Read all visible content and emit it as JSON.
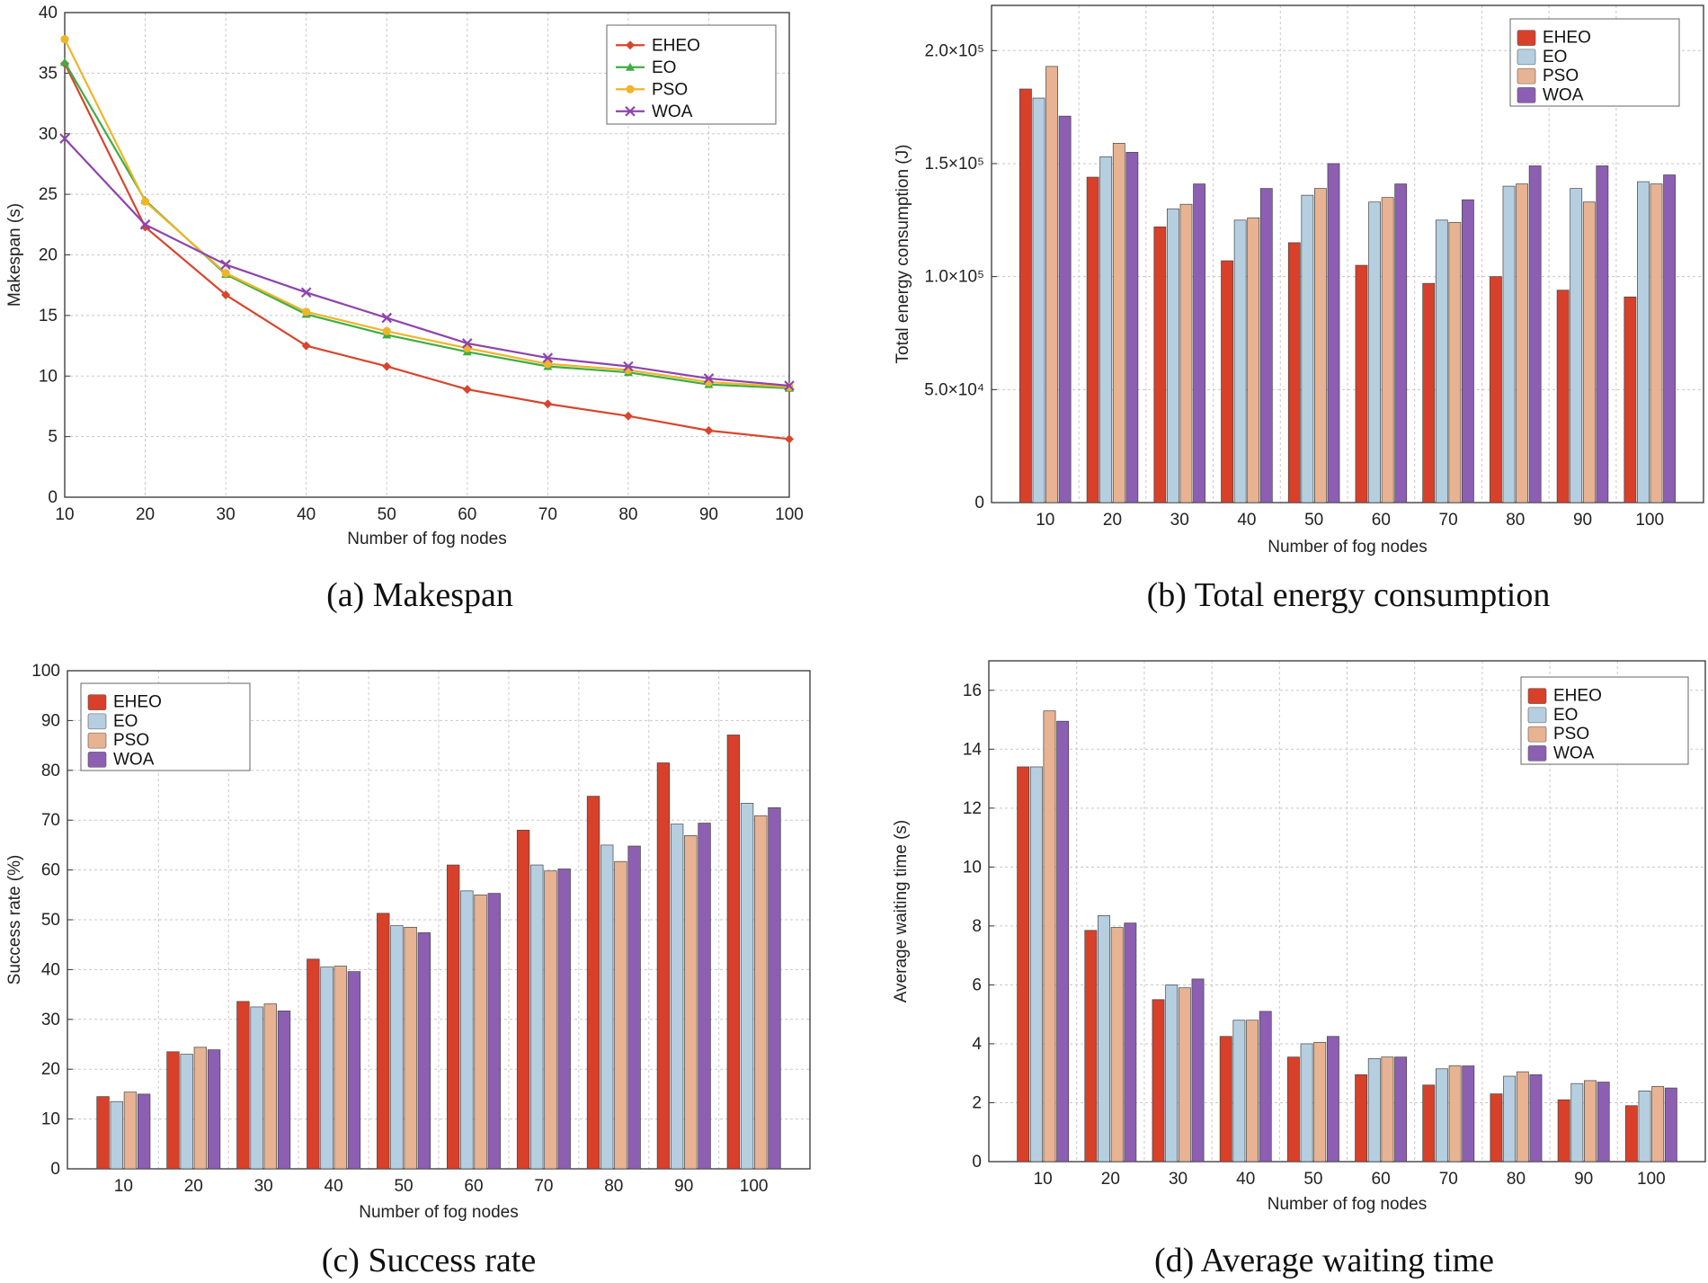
{
  "colors": {
    "EHEO_line": "#d9452c",
    "EO_line": "#3cae44",
    "PSO_line": "#f0b428",
    "WOA_line": "#8e44ad",
    "EHEO_bar": "#d8402a",
    "EO_bar": "#b6cfe0",
    "PSO_bar": "#e7b393",
    "WOA_bar": "#8c5fb2"
  },
  "chart_data": [
    {
      "id": "a",
      "type": "line",
      "caption": "(a) Makespan",
      "xlabel": "Number of fog nodes",
      "ylabel": "Makespan (s)",
      "x": [
        10,
        20,
        30,
        40,
        50,
        60,
        70,
        80,
        90,
        100
      ],
      "xlim": [
        10,
        100
      ],
      "ylim": [
        0,
        40
      ],
      "yticks": [
        0,
        5,
        10,
        15,
        20,
        25,
        30,
        35,
        40
      ],
      "ytick_labels": [
        "0",
        "5",
        "10",
        "15",
        "20",
        "25",
        "30",
        "35",
        "40"
      ],
      "grid": true,
      "legend": "top-right",
      "series": [
        {
          "name": "EHEO",
          "marker": "diamond",
          "values": [
            35.8,
            22.3,
            16.7,
            12.5,
            10.8,
            8.9,
            7.7,
            6.7,
            5.5,
            4.8
          ]
        },
        {
          "name": "EO",
          "marker": "triangle",
          "values": [
            35.9,
            24.5,
            18.4,
            15.1,
            13.4,
            12.0,
            10.8,
            10.3,
            9.3,
            9.0
          ]
        },
        {
          "name": "PSO",
          "marker": "circle",
          "values": [
            37.8,
            24.4,
            18.5,
            15.3,
            13.7,
            12.3,
            11.0,
            10.5,
            9.5,
            9.1
          ]
        },
        {
          "name": "WOA",
          "marker": "x",
          "values": [
            29.6,
            22.5,
            19.2,
            16.9,
            14.8,
            12.7,
            11.5,
            10.8,
            9.8,
            9.2
          ]
        }
      ]
    },
    {
      "id": "b",
      "type": "bar",
      "caption": "(b) Total energy consumption",
      "xlabel": "Number of fog nodes",
      "ylabel": "Total energy consumption (J)",
      "categories": [
        "10",
        "20",
        "30",
        "40",
        "50",
        "60",
        "70",
        "80",
        "90",
        "100"
      ],
      "ylim": [
        0,
        220000
      ],
      "yticks": [
        0,
        50000,
        100000,
        150000,
        200000
      ],
      "ytick_labels": [
        "0",
        "5.0×10⁴",
        "1.0×10⁵",
        "1.5×10⁵",
        "2.0×10⁵"
      ],
      "grid": true,
      "legend": "top-right",
      "series": [
        {
          "name": "EHEO",
          "values": [
            183000,
            144000,
            122000,
            107000,
            115000,
            105000,
            97000,
            100000,
            94000,
            91000
          ]
        },
        {
          "name": "EO",
          "values": [
            179000,
            153000,
            130000,
            125000,
            136000,
            133000,
            125000,
            140000,
            139000,
            142000
          ]
        },
        {
          "name": "PSO",
          "values": [
            193000,
            159000,
            132000,
            126000,
            139000,
            135000,
            124000,
            141000,
            133000,
            141000
          ]
        },
        {
          "name": "WOA",
          "values": [
            171000,
            155000,
            141000,
            139000,
            150000,
            141000,
            134000,
            149000,
            149000,
            145000
          ]
        }
      ]
    },
    {
      "id": "c",
      "type": "bar",
      "caption": "(c) Success rate",
      "xlabel": "Number of fog nodes",
      "ylabel": "Success rate (%)",
      "categories": [
        "10",
        "20",
        "30",
        "40",
        "50",
        "60",
        "70",
        "80",
        "90",
        "100"
      ],
      "ylim": [
        0,
        100
      ],
      "yticks": [
        0,
        10,
        20,
        30,
        40,
        50,
        60,
        70,
        80,
        90,
        100
      ],
      "ytick_labels": [
        "0",
        "10",
        "20",
        "30",
        "40",
        "50",
        "60",
        "70",
        "80",
        "90",
        "100"
      ],
      "grid": true,
      "legend": "top-left",
      "series": [
        {
          "name": "EHEO",
          "values": [
            14.5,
            23.5,
            33.6,
            42.1,
            51.3,
            61.0,
            68.0,
            74.8,
            81.5,
            87.1
          ]
        },
        {
          "name": "EO",
          "values": [
            13.5,
            23.0,
            32.5,
            40.5,
            48.8,
            55.8,
            61.0,
            65.0,
            69.2,
            73.4
          ]
        },
        {
          "name": "PSO",
          "values": [
            15.4,
            24.4,
            33.1,
            40.7,
            48.5,
            55.0,
            59.8,
            61.7,
            66.9,
            70.9
          ]
        },
        {
          "name": "WOA",
          "values": [
            15.0,
            23.9,
            31.7,
            39.6,
            47.4,
            55.3,
            60.2,
            64.8,
            69.4,
            72.5
          ]
        }
      ]
    },
    {
      "id": "d",
      "type": "bar",
      "caption": "(d) Average waiting time",
      "xlabel": "Number of fog nodes",
      "ylabel": "Average waiting time (s)",
      "categories": [
        "10",
        "20",
        "30",
        "40",
        "50",
        "60",
        "70",
        "80",
        "90",
        "100"
      ],
      "ylim": [
        0,
        17
      ],
      "yticks": [
        0,
        2,
        4,
        6,
        8,
        10,
        12,
        14,
        16
      ],
      "ytick_labels": [
        "0",
        "2",
        "4",
        "6",
        "8",
        "10",
        "12",
        "14",
        "16"
      ],
      "grid": true,
      "legend": "top-right",
      "series": [
        {
          "name": "EHEO",
          "values": [
            13.4,
            7.85,
            5.5,
            4.25,
            3.55,
            2.95,
            2.6,
            2.3,
            2.1,
            1.9
          ]
        },
        {
          "name": "EO",
          "values": [
            13.4,
            8.35,
            6.0,
            4.8,
            4.0,
            3.5,
            3.15,
            2.9,
            2.65,
            2.4
          ]
        },
        {
          "name": "PSO",
          "values": [
            15.3,
            7.95,
            5.9,
            4.8,
            4.05,
            3.55,
            3.25,
            3.05,
            2.75,
            2.55
          ]
        },
        {
          "name": "WOA",
          "values": [
            14.95,
            8.1,
            6.2,
            5.1,
            4.25,
            3.55,
            3.25,
            2.95,
            2.7,
            2.5
          ]
        }
      ]
    }
  ]
}
